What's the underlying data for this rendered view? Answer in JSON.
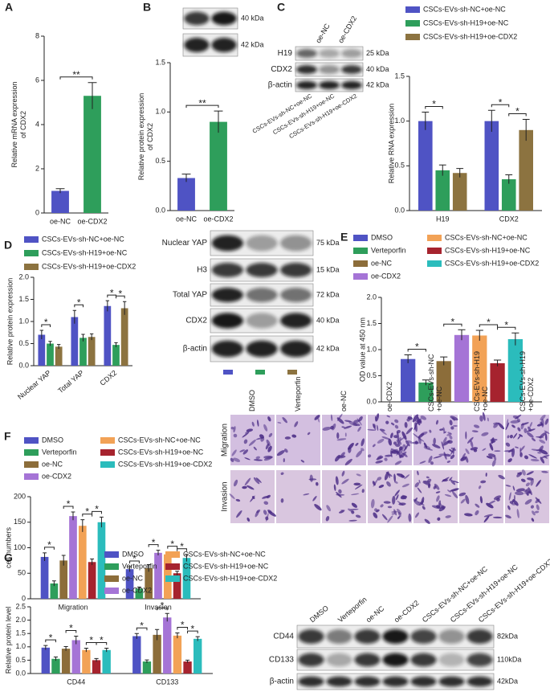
{
  "chart_data": [
    {
      "type": "bar",
      "panel": "A",
      "ylabel": [
        "Relative mRNA expression",
        "of CDX2"
      ],
      "categories": [
        "oe-NC",
        "oe-CDX2"
      ],
      "values": [
        1.0,
        5.3
      ],
      "errors": [
        0.1,
        0.6
      ],
      "colors": [
        "#4f53c4",
        "#2e9e5b"
      ],
      "ylim": [
        0,
        8
      ],
      "yticks": [
        0,
        2,
        4,
        6,
        8
      ],
      "comparisons": [
        {
          "label": "**",
          "bars": [
            [
              0,
              0
            ],
            [
              0,
              1
            ]
          ]
        }
      ]
    },
    {
      "type": "bar",
      "panel": "B",
      "ylabel": [
        "Relative protein expression",
        "of CDX2"
      ],
      "categories": [
        "oe-NC",
        "oe-CDX2"
      ],
      "values": [
        0.33,
        0.9
      ],
      "errors": [
        0.04,
        0.11
      ],
      "colors": [
        "#4f53c4",
        "#2e9e5b"
      ],
      "ylim": [
        0,
        1.5
      ],
      "yticks": [
        {
          "value": 0,
          "label": "0.0"
        },
        {
          "value": 0.5,
          "label": "0.5"
        },
        {
          "value": 1,
          "label": "1.0"
        },
        {
          "value": 1.5,
          "label": "1.5"
        }
      ],
      "comparisons": [
        {
          "label": "**",
          "bars": [
            [
              0,
              0
            ],
            [
              0,
              1
            ]
          ]
        }
      ]
    },
    {
      "type": "bar",
      "panel": "C",
      "ylabel": "Relative RNA expression",
      "categories": [
        "H19",
        "CDX2"
      ],
      "series": [
        {
          "name": "CSCs-EVs-sh-NC+oe-NC",
          "color": "#4f53c4",
          "values": [
            1.0,
            1.0
          ],
          "errors": [
            0.1,
            0.12
          ]
        },
        {
          "name": "CSCs-EVs-sh-H19+oe-NC",
          "color": "#2e9e5b",
          "values": [
            0.45,
            0.35
          ],
          "errors": [
            0.06,
            0.05
          ]
        },
        {
          "name": "CSCs-EVs-sh-H19+oe-CDX2",
          "color": "#8c7340",
          "values": [
            0.42,
            0.9
          ],
          "errors": [
            0.05,
            0.12
          ]
        }
      ],
      "ylim": [
        0,
        1.5
      ],
      "yticks": [
        {
          "value": 0,
          "label": "0.0"
        },
        {
          "value": 0.5,
          "label": "0.5"
        },
        {
          "value": 1,
          "label": "1.0"
        },
        {
          "value": 1.5,
          "label": "1.5"
        }
      ],
      "comparisons": [
        {
          "label": "*",
          "bars": [
            [
              0,
              0
            ],
            [
              1,
              0
            ]
          ]
        },
        {
          "label": "*",
          "bars": [
            [
              0,
              1
            ],
            [
              1,
              1
            ]
          ]
        },
        {
          "label": "*",
          "bars": [
            [
              1,
              1
            ],
            [
              2,
              1
            ]
          ]
        }
      ]
    },
    {
      "type": "bar",
      "panel": "D",
      "ylabel": "Relative protein expression",
      "categories": [
        "Nuclear YAP",
        "Total YAP",
        "CDX2"
      ],
      "series": [
        {
          "name": "CSCs-EVs-sh-NC+oe-NC",
          "color": "#4f53c4",
          "values": [
            0.7,
            1.1,
            1.35
          ],
          "errors": [
            0.1,
            0.15,
            0.12
          ]
        },
        {
          "name": "CSCs-EVs-sh-H19+oe-NC",
          "color": "#2e9e5b",
          "values": [
            0.5,
            0.63,
            0.47
          ],
          "errors": [
            0.05,
            0.08,
            0.05
          ]
        },
        {
          "name": "CSCs-EVs-sh-H19+oe-CDX2",
          "color": "#8c7340",
          "values": [
            0.43,
            0.65,
            1.3
          ],
          "errors": [
            0.05,
            0.07,
            0.15
          ]
        }
      ],
      "ylim": [
        0,
        2
      ],
      "yticks": [
        {
          "value": 0,
          "label": "0.0"
        },
        {
          "value": 0.5,
          "label": "0.5"
        },
        {
          "value": 1,
          "label": "1.0"
        },
        {
          "value": 1.5,
          "label": "1.5"
        },
        {
          "value": 2,
          "label": "2.0"
        }
      ],
      "comparisons": [
        {
          "label": "*",
          "bars": [
            [
              0,
              0
            ],
            [
              1,
              0
            ]
          ]
        },
        {
          "label": "*",
          "bars": [
            [
              0,
              1
            ],
            [
              1,
              1
            ]
          ]
        },
        {
          "label": "*",
          "bars": [
            [
              0,
              2
            ],
            [
              1,
              2
            ]
          ]
        },
        {
          "label": "*",
          "bars": [
            [
              1,
              2
            ],
            [
              2,
              2
            ]
          ]
        }
      ]
    },
    {
      "type": "bar",
      "panel": "E",
      "ylabel": "OD value at 450 nm",
      "categories": [
        null
      ],
      "series": [
        {
          "name": "DMSO",
          "color": "#4f53c4",
          "values": [
            0.82
          ],
          "errors": [
            0.08
          ]
        },
        {
          "name": "Verteporfin",
          "color": "#2e9e5b",
          "values": [
            0.37
          ],
          "errors": [
            0.05
          ]
        },
        {
          "name": "oe-NC",
          "color": "#8c6d3a",
          "values": [
            0.78
          ],
          "errors": [
            0.08
          ]
        },
        {
          "name": "oe-CDX2",
          "color": "#a574d6",
          "values": [
            1.28
          ],
          "errors": [
            0.1
          ]
        },
        {
          "name": "CSCs-EVs-sh-NC+oe-NC",
          "color": "#f2a256",
          "values": [
            1.27
          ],
          "errors": [
            0.1
          ]
        },
        {
          "name": "CSCs-EVs-sh-H19+oe-NC",
          "color": "#a6232e",
          "values": [
            0.74
          ],
          "errors": [
            0.06
          ]
        },
        {
          "name": "CSCs-EVs-sh-H19+oe-CDX2",
          "color": "#2bbcbc",
          "values": [
            1.2
          ],
          "errors": [
            0.12
          ]
        }
      ],
      "ylim": [
        0,
        2
      ],
      "yticks": [
        {
          "value": 0,
          "label": "0.0"
        },
        {
          "value": 0.5,
          "label": "0.5"
        },
        {
          "value": 1,
          "label": "1.0"
        },
        {
          "value": 1.5,
          "label": "1.5"
        },
        {
          "value": 2,
          "label": "2.0"
        }
      ],
      "comparisons": [
        {
          "label": "*",
          "bars": [
            [
              0,
              0
            ],
            [
              1,
              0
            ]
          ]
        },
        {
          "label": "*",
          "bars": [
            [
              2,
              0
            ],
            [
              3,
              0
            ]
          ]
        },
        {
          "label": "*",
          "bars": [
            [
              4,
              0
            ],
            [
              5,
              0
            ]
          ]
        },
        {
          "label": "*",
          "bars": [
            [
              5,
              0
            ],
            [
              6,
              0
            ]
          ]
        }
      ]
    },
    {
      "type": "bar",
      "panel": "F",
      "ylabel": "cell numbers",
      "categories": [
        "Migration",
        "Invasion"
      ],
      "series": [
        {
          "name": "DMSO",
          "color": "#4f53c4",
          "values": [
            82,
            58
          ],
          "errors": [
            8,
            5
          ]
        },
        {
          "name": "Verteporfin",
          "color": "#2e9e5b",
          "values": [
            30,
            20
          ],
          "errors": [
            5,
            3
          ]
        },
        {
          "name": "oe-NC",
          "color": "#8c6d3a",
          "values": [
            75,
            60
          ],
          "errors": [
            10,
            7
          ]
        },
        {
          "name": "oe-CDX2",
          "color": "#a574d6",
          "values": [
            162,
            90
          ],
          "errors": [
            8,
            5
          ]
        },
        {
          "name": "CSCs-EVs-sh-NC+oe-NC",
          "color": "#f2a256",
          "values": [
            143,
            87
          ],
          "errors": [
            12,
            5
          ]
        },
        {
          "name": "CSCs-EVs-sh-H19+oe-NC",
          "color": "#a6232e",
          "values": [
            72,
            50
          ],
          "errors": [
            6,
            4
          ]
        },
        {
          "name": "CSCs-EVs-sh-H19+oe-CDX2",
          "color": "#2bbcbc",
          "values": [
            150,
            80
          ],
          "errors": [
            10,
            7
          ]
        }
      ],
      "ylim": [
        0,
        200
      ],
      "yticks": [
        0,
        50,
        100,
        150,
        200
      ],
      "comparisons": [
        {
          "label": "*",
          "bars": [
            [
              0,
              0
            ],
            [
              1,
              0
            ]
          ]
        },
        {
          "label": "*",
          "bars": [
            [
              2,
              0
            ],
            [
              3,
              0
            ]
          ]
        },
        {
          "label": "*",
          "bars": [
            [
              4,
              0
            ],
            [
              5,
              0
            ]
          ]
        },
        {
          "label": "*",
          "bars": [
            [
              5,
              0
            ],
            [
              6,
              0
            ]
          ]
        },
        {
          "label": "*",
          "bars": [
            [
              0,
              1
            ],
            [
              1,
              1
            ]
          ]
        },
        {
          "label": "*",
          "bars": [
            [
              2,
              1
            ],
            [
              3,
              1
            ]
          ]
        },
        {
          "label": "*",
          "bars": [
            [
              4,
              1
            ],
            [
              5,
              1
            ]
          ]
        },
        {
          "label": "*",
          "bars": [
            [
              5,
              1
            ],
            [
              6,
              1
            ]
          ]
        }
      ]
    },
    {
      "type": "bar",
      "panel": "G",
      "ylabel": "Relative protein level",
      "categories": [
        "CD44",
        "CD133"
      ],
      "series": [
        {
          "name": "DMSO",
          "color": "#4f53c4",
          "values": [
            0.97,
            1.4
          ],
          "errors": [
            0.08,
            0.1
          ]
        },
        {
          "name": "Verteporfin",
          "color": "#2e9e5b",
          "values": [
            0.55,
            0.45
          ],
          "errors": [
            0.07,
            0.06
          ]
        },
        {
          "name": "oe-NC",
          "color": "#8c6d3a",
          "values": [
            0.93,
            1.45
          ],
          "errors": [
            0.08,
            0.2
          ]
        },
        {
          "name": "oe-CDX2",
          "color": "#a574d6",
          "values": [
            1.25,
            2.1
          ],
          "errors": [
            0.15,
            0.15
          ]
        },
        {
          "name": "CSCs-EVs-sh-NC+oe-NC",
          "color": "#f2a256",
          "values": [
            0.88,
            1.42
          ],
          "errors": [
            0.07,
            0.1
          ]
        },
        {
          "name": "CSCs-EVs-sh-H19+oe-NC",
          "color": "#a6232e",
          "values": [
            0.5,
            0.45
          ],
          "errors": [
            0.06,
            0.05
          ]
        },
        {
          "name": "CSCs-EVs-sh-H19+oe-CDX2",
          "color": "#2bbcbc",
          "values": [
            0.88,
            1.3
          ],
          "errors": [
            0.07,
            0.08
          ]
        }
      ],
      "ylim": [
        0,
        2.5
      ],
      "yticks": [
        {
          "value": 0,
          "label": "0.0"
        },
        {
          "value": 0.5,
          "label": "0.5"
        },
        {
          "value": 1,
          "label": "1.0"
        },
        {
          "value": 1.5,
          "label": "1.5"
        },
        {
          "value": 2,
          "label": "2.0"
        },
        {
          "value": 2.5,
          "label": "2.5"
        }
      ],
      "comparisons": [
        {
          "label": "*",
          "bars": [
            [
              0,
              0
            ],
            [
              1,
              0
            ]
          ]
        },
        {
          "label": "*",
          "bars": [
            [
              2,
              0
            ],
            [
              3,
              0
            ]
          ]
        },
        {
          "label": "*",
          "bars": [
            [
              4,
              0
            ],
            [
              5,
              0
            ]
          ]
        },
        {
          "label": "*",
          "bars": [
            [
              5,
              0
            ],
            [
              6,
              0
            ]
          ]
        },
        {
          "label": "*",
          "bars": [
            [
              0,
              1
            ],
            [
              1,
              1
            ]
          ]
        },
        {
          "label": "*",
          "bars": [
            [
              2,
              1
            ],
            [
              3,
              1
            ]
          ]
        },
        {
          "label": "*",
          "bars": [
            [
              4,
              1
            ],
            [
              5,
              1
            ]
          ]
        },
        {
          "label": "*",
          "bars": [
            [
              5,
              1
            ],
            [
              6,
              1
            ]
          ]
        }
      ]
    }
  ],
  "blots": [
    {
      "kda": [
        "40 kDa",
        "42 kDa"
      ]
    },
    {
      "columns": [
        "oe-NC",
        "oe-CDX2"
      ],
      "rows": [
        "H19",
        "CDX2",
        "β-actin"
      ],
      "kda": [
        "25 kDa",
        "40 kDa",
        "42 kDa"
      ],
      "lanes": [
        "CSCs-EVs-sh-NC+oe-NC",
        "CSCs-EVs-sh-H19+oe-NC",
        "CSCs-EVs-sh-H19+oe-CDX2"
      ]
    },
    {
      "rows": [
        "Nuclear YAP",
        "H3",
        "Total YAP",
        "CDX2",
        "β-actin"
      ],
      "kda": [
        "75 kDa",
        "15 kDa",
        "72 kDa",
        "40 kDa",
        "42 kDa"
      ]
    },
    {
      "columns": [
        "DMSO",
        "Verteporfin",
        "oe-NC",
        "oe-CDX2",
        "CSCs-EVs-sh-NC+oe-NC",
        "CSCs-EVs-sh-H19+oe-NC",
        "CSCs-EVs-sh-H19+oe-CDX2"
      ],
      "rows": [
        "CD44",
        "CD133",
        "β-actin"
      ],
      "kda": [
        "82kDa",
        "110kDa",
        "42kDa"
      ]
    }
  ],
  "micrographs": {
    "columns": [
      "DMSO",
      "Verteporfin",
      "oe-NC",
      "oe-CDX2",
      [
        "CSCs-EVs-sh-NC",
        "+oe-NC"
      ],
      [
        "CSCs-EVs-sh-H19",
        "+oe-NC"
      ],
      [
        "CSCs-EVs-sh-H19",
        "+oe-CDX2"
      ]
    ],
    "rows": [
      "Migration",
      "Invasion"
    ]
  }
}
